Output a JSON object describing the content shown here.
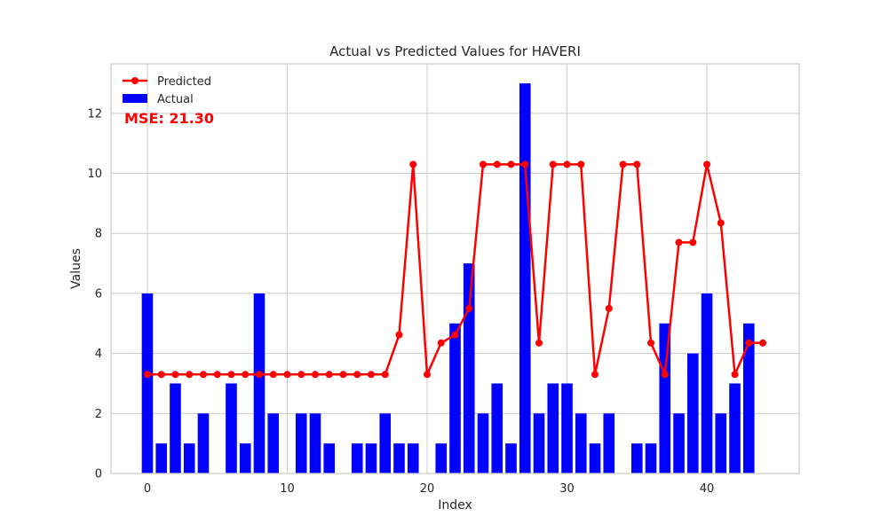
{
  "chart_data": {
    "type": "bar",
    "title": "Actual vs Predicted Values for HAVERI",
    "xlabel": "Index",
    "ylabel": "Values",
    "xlim": [
      -2.6,
      46.6
    ],
    "ylim": [
      0,
      13.65
    ],
    "xticks": [
      0,
      10,
      20,
      30,
      40
    ],
    "yticks": [
      0,
      2,
      4,
      6,
      8,
      10,
      12
    ],
    "grid": true,
    "legend": {
      "placement": "top-left",
      "entries": [
        "Predicted",
        "Actual"
      ]
    },
    "annotation": {
      "text": "MSE: 21.30",
      "color": "#ff0000"
    },
    "series": [
      {
        "name": "Actual",
        "type": "bar",
        "color": "#0000ff",
        "x": [
          0,
          1,
          2,
          3,
          4,
          5,
          6,
          7,
          8,
          9,
          10,
          11,
          12,
          13,
          14,
          15,
          16,
          17,
          18,
          19,
          20,
          21,
          22,
          23,
          24,
          25,
          26,
          27,
          28,
          29,
          30,
          31,
          32,
          33,
          34,
          35,
          36,
          37,
          38,
          39,
          40,
          41,
          42,
          43
        ],
        "values": [
          6,
          1,
          3,
          1,
          2,
          0,
          3,
          1,
          6,
          2,
          0,
          2,
          2,
          1,
          0,
          1,
          1,
          2,
          1,
          1,
          0,
          1,
          5,
          7,
          2,
          3,
          1,
          13,
          2,
          3,
          3,
          2,
          1,
          2,
          0,
          1,
          1,
          5,
          2,
          4,
          6,
          2,
          3,
          5
        ]
      },
      {
        "name": "Predicted",
        "type": "line",
        "color": "#ff0000",
        "x": [
          0,
          1,
          2,
          3,
          4,
          5,
          6,
          7,
          8,
          9,
          10,
          11,
          12,
          13,
          14,
          15,
          16,
          17,
          18,
          19,
          20,
          21,
          22,
          23,
          24,
          25,
          26,
          27,
          28,
          29,
          30,
          31,
          32,
          33,
          34,
          35,
          36,
          37,
          38,
          39,
          40,
          41,
          42,
          43,
          44
        ],
        "values": [
          3.3,
          3.3,
          3.3,
          3.3,
          3.3,
          3.3,
          3.3,
          3.3,
          3.3,
          3.3,
          3.3,
          3.3,
          3.3,
          3.3,
          3.3,
          3.3,
          3.3,
          3.3,
          4.62,
          10.3,
          3.3,
          4.35,
          4.62,
          5.5,
          10.3,
          10.3,
          10.3,
          10.3,
          4.35,
          10.3,
          10.3,
          10.3,
          3.3,
          5.5,
          10.3,
          10.3,
          4.35,
          3.3,
          7.7,
          7.7,
          10.3,
          8.35,
          3.3,
          4.35,
          4.35
        ]
      }
    ]
  }
}
